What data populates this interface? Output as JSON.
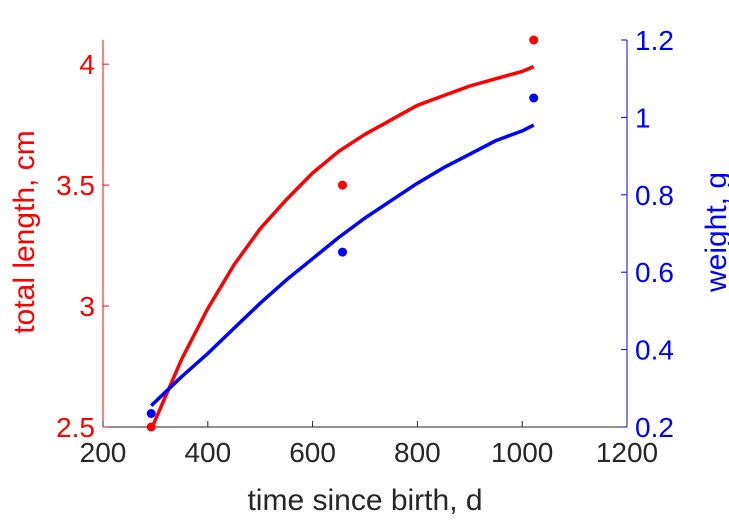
{
  "chart_data": {
    "type": "scatter",
    "title": "",
    "xlabel": "time since birth, d",
    "xlim": [
      200,
      1200
    ],
    "xticks": [
      200,
      400,
      600,
      800,
      1000,
      1200
    ],
    "left_axis": {
      "label": "total length, cm",
      "color": "#ff0000",
      "ylim": [
        2.5,
        4.1
      ],
      "ticks": [
        2.5,
        3,
        3.5,
        4
      ],
      "tick_labels": [
        "2.5",
        "3",
        "3.5",
        "4"
      ]
    },
    "right_axis": {
      "label": "weight, g",
      "color": "#0000ff",
      "ylim": [
        0.2,
        1.2
      ],
      "ticks": [
        0.2,
        0.4,
        0.6,
        0.8,
        1,
        1.2
      ],
      "tick_labels": [
        "0.2",
        "0.4",
        "0.6",
        "0.8",
        "1",
        "1.2"
      ]
    },
    "series": [
      {
        "axis": "left",
        "color": "#ff0000",
        "points": [
          {
            "x": 292,
            "y": 2.5
          },
          {
            "x": 657,
            "y": 3.5
          },
          {
            "x": 1022,
            "y": 4.1
          }
        ],
        "curve": [
          {
            "x": 292,
            "y": 2.49
          },
          {
            "x": 350,
            "y": 2.78
          },
          {
            "x": 400,
            "y": 2.99
          },
          {
            "x": 450,
            "y": 3.17
          },
          {
            "x": 500,
            "y": 3.32
          },
          {
            "x": 550,
            "y": 3.44
          },
          {
            "x": 600,
            "y": 3.55
          },
          {
            "x": 650,
            "y": 3.64
          },
          {
            "x": 700,
            "y": 3.71
          },
          {
            "x": 750,
            "y": 3.77
          },
          {
            "x": 800,
            "y": 3.83
          },
          {
            "x": 850,
            "y": 3.87
          },
          {
            "x": 900,
            "y": 3.91
          },
          {
            "x": 950,
            "y": 3.94
          },
          {
            "x": 1000,
            "y": 3.97
          },
          {
            "x": 1022,
            "y": 3.99
          }
        ]
      },
      {
        "axis": "right",
        "color": "#0000ff",
        "points": [
          {
            "x": 292,
            "y": 0.235
          },
          {
            "x": 657,
            "y": 0.652
          },
          {
            "x": 1022,
            "y": 1.05
          }
        ],
        "curve": [
          {
            "x": 292,
            "y": 0.255
          },
          {
            "x": 350,
            "y": 0.33
          },
          {
            "x": 400,
            "y": 0.39
          },
          {
            "x": 450,
            "y": 0.455
          },
          {
            "x": 500,
            "y": 0.52
          },
          {
            "x": 550,
            "y": 0.58
          },
          {
            "x": 600,
            "y": 0.635
          },
          {
            "x": 650,
            "y": 0.69
          },
          {
            "x": 700,
            "y": 0.74
          },
          {
            "x": 750,
            "y": 0.785
          },
          {
            "x": 800,
            "y": 0.83
          },
          {
            "x": 850,
            "y": 0.87
          },
          {
            "x": 900,
            "y": 0.905
          },
          {
            "x": 950,
            "y": 0.94
          },
          {
            "x": 1000,
            "y": 0.965
          },
          {
            "x": 1022,
            "y": 0.98
          }
        ]
      }
    ],
    "grid": false,
    "legend": "none"
  }
}
